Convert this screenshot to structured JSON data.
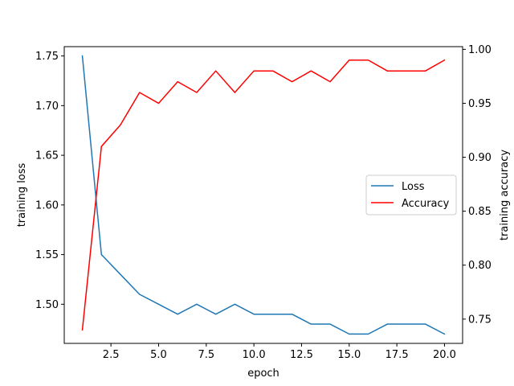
{
  "chart_data": {
    "type": "line",
    "xlabel": "epoch",
    "ylabel_left": "training loss",
    "ylabel_right": "training accuracy",
    "xlim": [
      0.05,
      20.95
    ],
    "ylim_left": [
      1.4606,
      1.7594
    ],
    "ylim_right": [
      0.7275,
      1.0025
    ],
    "x_ticks": [
      2.5,
      5.0,
      7.5,
      10.0,
      12.5,
      15.0,
      17.5,
      20.0
    ],
    "x_tick_labels": [
      "2.5",
      "5.0",
      "7.5",
      "10.0",
      "12.5",
      "15.0",
      "17.5",
      "20.0"
    ],
    "y_left_ticks": [
      1.5,
      1.55,
      1.6,
      1.65,
      1.7,
      1.75
    ],
    "y_left_tick_labels": [
      "1.50",
      "1.55",
      "1.60",
      "1.65",
      "1.70",
      "1.75"
    ],
    "y_right_ticks": [
      0.75,
      0.8,
      0.85,
      0.9,
      0.95,
      1.0
    ],
    "y_right_tick_labels": [
      "0.75",
      "0.80",
      "0.85",
      "0.90",
      "0.95",
      "1.00"
    ],
    "x": [
      1,
      2,
      3,
      4,
      5,
      6,
      7,
      8,
      9,
      10,
      11,
      12,
      13,
      14,
      15,
      16,
      17,
      18,
      19,
      20
    ],
    "series": [
      {
        "name": "Loss",
        "axis": "left",
        "color": "#1f77b4",
        "values": [
          1.75,
          1.55,
          1.53,
          1.51,
          1.5,
          1.49,
          1.5,
          1.49,
          1.5,
          1.49,
          1.49,
          1.49,
          1.48,
          1.48,
          1.47,
          1.47,
          1.48,
          1.48,
          1.48,
          1.47
        ]
      },
      {
        "name": "Accuracy",
        "axis": "right",
        "color": "#ff0000",
        "values": [
          0.74,
          0.91,
          0.93,
          0.96,
          0.95,
          0.97,
          0.96,
          0.98,
          0.96,
          0.98,
          0.98,
          0.97,
          0.98,
          0.97,
          0.99,
          0.99,
          0.98,
          0.98,
          0.98,
          0.99
        ]
      }
    ],
    "legend_position": "center-right",
    "grid": false
  }
}
